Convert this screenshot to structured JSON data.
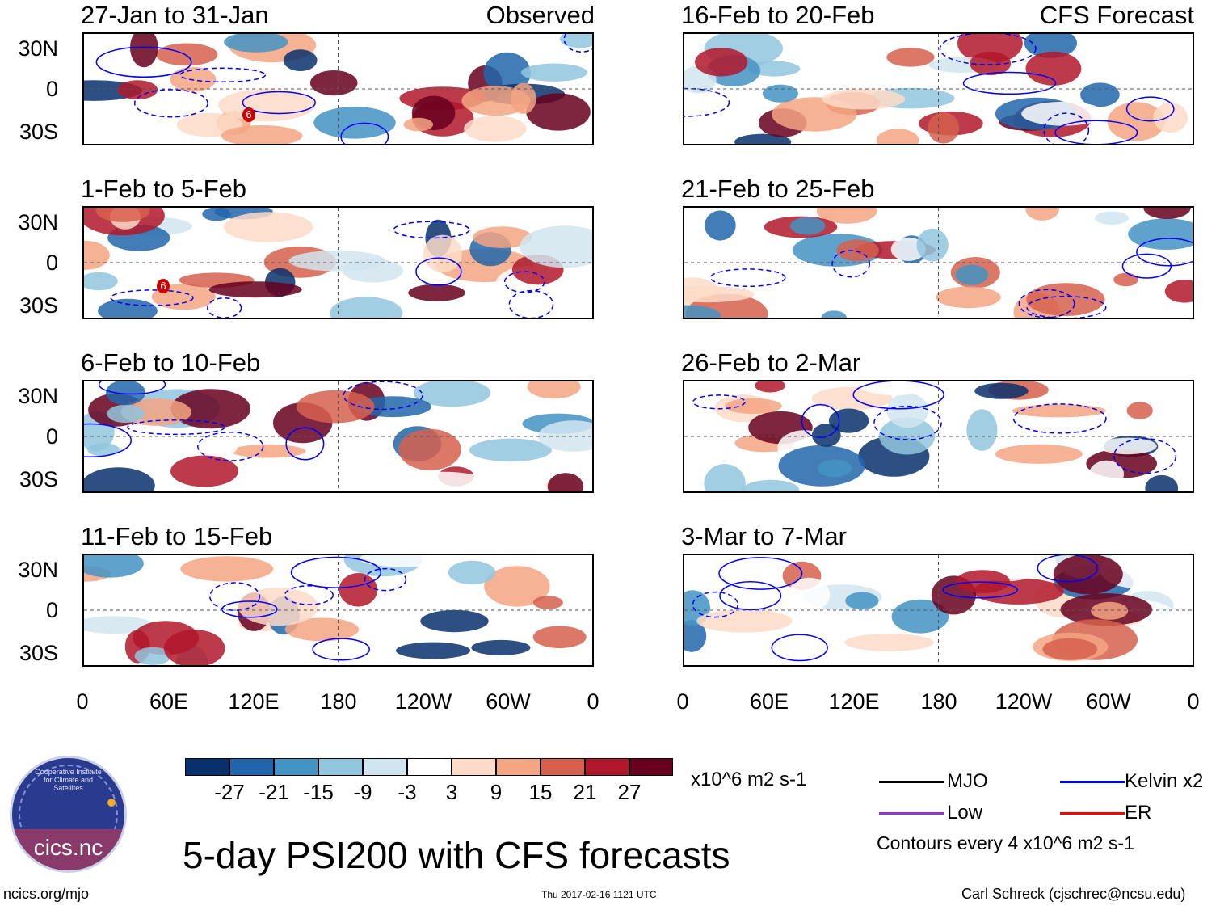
{
  "panels_left": [
    {
      "title": "27-Jan to 31-Jan",
      "tag": "Observed",
      "cyclone": "6"
    },
    {
      "title": "1-Feb to 5-Feb",
      "tag": "",
      "cyclone": "6"
    },
    {
      "title": "6-Feb to 10-Feb",
      "tag": "",
      "cyclone": ""
    },
    {
      "title": "11-Feb to 15-Feb",
      "tag": "",
      "cyclone": ""
    }
  ],
  "panels_right": [
    {
      "title": "16-Feb to 20-Feb",
      "tag": "CFS Forecast"
    },
    {
      "title": "21-Feb to 25-Feb",
      "tag": ""
    },
    {
      "title": "26-Feb to 2-Mar",
      "tag": ""
    },
    {
      "title": "3-Mar to 7-Mar",
      "tag": ""
    }
  ],
  "lat_labels": [
    "30N",
    "0",
    "30S"
  ],
  "lon_labels": [
    "0",
    "60E",
    "120E",
    "180",
    "120W",
    "60W",
    "0"
  ],
  "colorbar": {
    "colors": [
      "#08306b",
      "#2166ac",
      "#4393c3",
      "#92c5de",
      "#d1e5f0",
      "#ffffff",
      "#fddbc7",
      "#f4a582",
      "#d6604d",
      "#b2182b",
      "#67001f"
    ],
    "ticks": [
      "-27",
      "-21",
      "-15",
      "-9",
      "-3",
      "3",
      "9",
      "15",
      "21",
      "27"
    ],
    "units": "x10^6 m2 s-1"
  },
  "legend": {
    "items": [
      {
        "label": "MJO",
        "color": "#000000"
      },
      {
        "label": "Kelvin x2",
        "color": "#0000ff"
      },
      {
        "label": "Low",
        "color": "#9933cc"
      },
      {
        "label": "ER",
        "color": "#ff0000"
      }
    ],
    "contour_note": "Contours every 4 x10^6 m2 s-1"
  },
  "title": "5-day PSI200 with CFS forecasts",
  "footer": {
    "left": "ncics.org/mjo",
    "center": "Thu 2017-02-16 1121 UTC",
    "right": "Carl Schreck (cjschrec@ncsu.edu)"
  },
  "logo": {
    "text": "cics.nc",
    "ring_text": "Cooperative Institute for Climate and Satellites"
  }
}
